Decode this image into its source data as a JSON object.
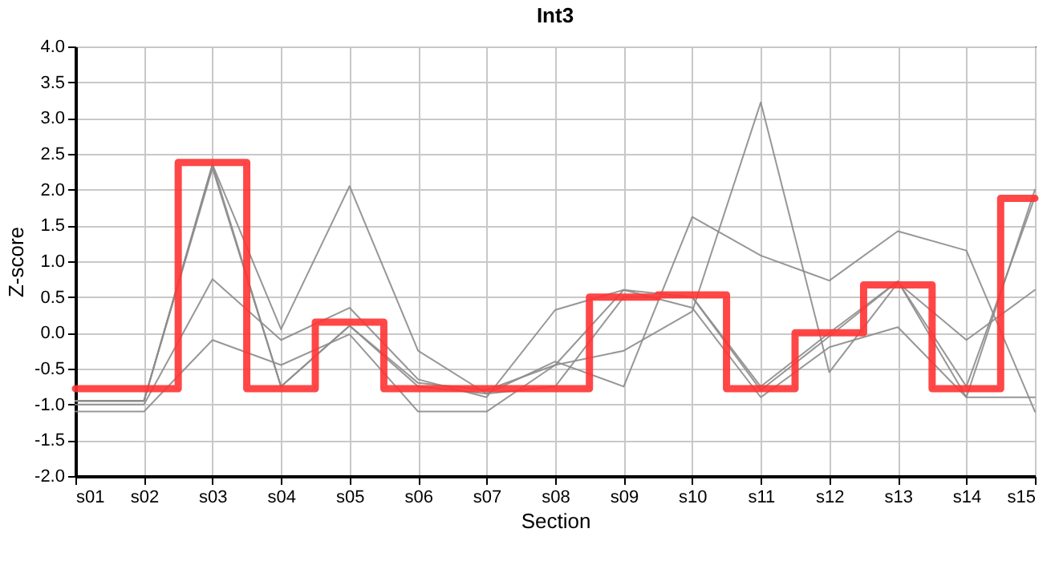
{
  "chart_data": {
    "type": "line",
    "title": "Int3",
    "xlabel": "Section",
    "ylabel": "Z-score",
    "categories": [
      "s01",
      "s02",
      "s03",
      "s04",
      "s05",
      "s06",
      "s07",
      "s08",
      "s09",
      "s10",
      "s11",
      "s12",
      "s13",
      "s14",
      "s15"
    ],
    "series": [
      {
        "type": "line",
        "color": "#8c8c8c",
        "values": [
          -0.95,
          -0.95,
          2.35,
          0.05,
          2.05,
          -0.25,
          -0.85,
          -0.4,
          -0.75,
          1.62,
          1.08,
          0.73,
          1.42,
          1.15,
          -1.1
        ]
      },
      {
        "type": "line",
        "color": "#8c8c8c",
        "values": [
          -0.95,
          -0.95,
          2.3,
          -0.75,
          0.1,
          -0.7,
          -0.8,
          -0.45,
          -0.25,
          0.3,
          3.22,
          -0.55,
          0.7,
          -0.1,
          0.6
        ]
      },
      {
        "type": "line",
        "color": "#8c8c8c",
        "values": [
          -1.1,
          -1.1,
          -0.1,
          -0.45,
          -0.02,
          -1.1,
          -1.1,
          -0.45,
          0.6,
          0.35,
          -0.9,
          -0.2,
          0.08,
          -0.9,
          -0.9
        ]
      },
      {
        "type": "line",
        "color": "#8c8c8c",
        "values": [
          -1.0,
          -1.0,
          0.75,
          -0.1,
          0.35,
          -0.65,
          -0.9,
          0.32,
          0.6,
          0.5,
          -0.8,
          -0.05,
          0.72,
          -0.9,
          2.0
        ]
      },
      {
        "type": "line",
        "color": "#8c8c8c",
        "values": [
          -0.95,
          -0.95,
          2.35,
          -0.75,
          0.1,
          -0.75,
          -0.85,
          -0.75,
          0.5,
          0.5,
          -0.75,
          0.0,
          0.72,
          -0.75,
          1.9
        ]
      },
      {
        "type": "step",
        "color": "#ff3333",
        "values": [
          -0.78,
          -0.78,
          2.38,
          -0.78,
          0.15,
          -0.78,
          -0.78,
          -0.78,
          0.5,
          0.53,
          -0.78,
          0.0,
          0.67,
          -0.78,
          1.88
        ]
      }
    ],
    "ylim": [
      -2,
      4
    ],
    "yticks": [
      {
        "value": -2,
        "label": "-2.0"
      },
      {
        "value": -1.5,
        "label": "-1.5"
      },
      {
        "value": -1,
        "label": "-1.0"
      },
      {
        "value": -0.5,
        "label": "-0.5"
      },
      {
        "value": 0,
        "label": "0.0"
      },
      {
        "value": 0.5,
        "label": "0.5"
      },
      {
        "value": 1,
        "label": "1.0"
      },
      {
        "value": 1.5,
        "label": "1.5"
      },
      {
        "value": 2,
        "label": "2.0"
      },
      {
        "value": 2.5,
        "label": "2.5"
      },
      {
        "value": 3,
        "label": "3.0"
      },
      {
        "value": 3.5,
        "label": "3.5"
      },
      {
        "value": 4,
        "label": "4.0"
      }
    ],
    "grid": true,
    "legend": false,
    "marker": "none"
  }
}
